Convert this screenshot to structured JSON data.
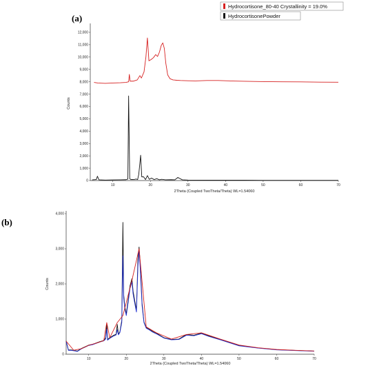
{
  "chart_data": [
    {
      "panel": "(a)",
      "type": "line",
      "xlabel": "2Theta (Coupled TwoTheta/Theta) WL=1.54060",
      "ylabel": "Counts",
      "xlim": [
        4,
        70
      ],
      "ylim": [
        0,
        12500
      ],
      "x_ticks": [
        10,
        20,
        30,
        40,
        50,
        60,
        70
      ],
      "y_ticks": [
        0,
        1000,
        2000,
        3000,
        4000,
        5000,
        6000,
        7000,
        8000,
        9000,
        10000,
        11000,
        12000
      ],
      "y_tick_labels": [
        "0",
        "1,000",
        "2,000",
        "3,000",
        "4,000",
        "5,000",
        "6,000",
        "7,000",
        "8,000",
        "9,000",
        "10,000",
        "11,000",
        "12,000"
      ],
      "legend_position": "top-right",
      "series": [
        {
          "name": "Hydrocortisone_80-40 Crystallinity = 19.0%",
          "color": "#d62020",
          "x": [
            5,
            6,
            8,
            10,
            12,
            13.5,
            14.2,
            14.4,
            14.6,
            15.5,
            16.5,
            17.2,
            17.6,
            18.3,
            18.8,
            19.2,
            19.6,
            20.2,
            20.8,
            21.4,
            21.9,
            22.4,
            22.9,
            23.3,
            23.7,
            24.1,
            24.6,
            25.2,
            26,
            27,
            28,
            30,
            32,
            35,
            38,
            40,
            42,
            45,
            50,
            55,
            60,
            65,
            70
          ],
          "y": [
            7950,
            7900,
            7870,
            7900,
            7920,
            7950,
            8000,
            8600,
            8050,
            8050,
            8150,
            8500,
            8300,
            8800,
            10000,
            11550,
            9700,
            9800,
            9950,
            10200,
            10050,
            10400,
            10950,
            11150,
            10700,
            9500,
            8550,
            8250,
            8150,
            8120,
            8100,
            8080,
            8070,
            8100,
            8100,
            8080,
            8060,
            8040,
            8010,
            8000,
            7990,
            7970,
            7960
          ]
        },
        {
          "name": "HydrocortisonePowder",
          "color": "#111111",
          "x": [
            4.5,
            5.6,
            5.9,
            6.3,
            8,
            10,
            12,
            13.5,
            14,
            14.2,
            14.5,
            14.8,
            15.1,
            15.6,
            16.2,
            16.6,
            16.9,
            17.4,
            17.7,
            18.2,
            18.7,
            19.2,
            19.7,
            20.3,
            21,
            21.7,
            22.4,
            23,
            24,
            25.5,
            26.5,
            27.3,
            28.5,
            30,
            35,
            40,
            45,
            50,
            55,
            60,
            65,
            70
          ],
          "y": [
            60,
            80,
            350,
            60,
            40,
            50,
            60,
            70,
            120,
            6850,
            150,
            80,
            90,
            80,
            120,
            80,
            500,
            2050,
            300,
            300,
            80,
            400,
            100,
            200,
            80,
            150,
            60,
            100,
            60,
            70,
            60,
            250,
            60,
            40,
            30,
            30,
            30,
            20,
            20,
            20,
            20,
            20
          ]
        }
      ]
    },
    {
      "panel": "(b)",
      "type": "line",
      "xlabel": "2Theta (Coupled TwoTheta/Theta) WL=1.54060",
      "ylabel": "Counts",
      "xlim": [
        4,
        70
      ],
      "ylim": [
        0,
        4000
      ],
      "x_ticks": [
        10,
        20,
        30,
        40,
        50,
        60,
        70
      ],
      "y_ticks": [
        0,
        1000,
        2000,
        3000,
        4000
      ],
      "y_tick_labels": [
        "0",
        "1,000",
        "2,000",
        "3,000",
        "4,000"
      ],
      "series": [
        {
          "color": "#111111",
          "x": [
            4,
            4.6,
            5.4,
            6,
            7,
            8,
            9,
            10,
            11,
            12,
            13,
            14,
            14.5,
            14.8,
            15,
            15.6,
            16.5,
            17.3,
            17.6,
            17.9,
            18.3,
            18.8,
            19.1,
            19.3,
            19.6,
            20,
            20.5,
            21,
            21.5,
            21.8,
            22.2,
            22.7,
            23.1,
            23.4,
            23.7,
            24.2,
            24.7,
            25.3,
            26,
            27,
            28,
            30,
            32,
            34,
            36,
            38,
            40,
            42,
            45,
            50,
            55,
            60,
            65,
            70
          ],
          "y": [
            380,
            120,
            120,
            110,
            90,
            160,
            210,
            260,
            280,
            320,
            360,
            390,
            470,
            850,
            420,
            470,
            530,
            570,
            850,
            570,
            640,
            960,
            3750,
            1700,
            1350,
            1150,
            1550,
            1950,
            2150,
            1800,
            1550,
            1250,
            2700,
            3050,
            2600,
            1450,
            920,
            760,
            720,
            650,
            600,
            470,
            420,
            430,
            560,
            540,
            600,
            520,
            420,
            250,
            180,
            130,
            110,
            90
          ]
        },
        {
          "color": "#1f2fd0",
          "x": [
            4,
            4.6,
            5.4,
            6,
            7,
            8,
            9,
            10,
            11,
            12,
            13,
            14,
            14.5,
            14.8,
            15,
            15.6,
            16.5,
            17.3,
            17.6,
            17.9,
            18.3,
            18.8,
            19.1,
            19.3,
            19.6,
            20,
            20.5,
            21,
            21.5,
            21.8,
            22.2,
            22.7,
            23.1,
            23.4,
            23.7,
            24.2,
            24.7,
            25.3,
            26,
            27,
            28,
            30,
            32,
            34,
            36,
            38,
            40,
            42,
            45,
            50,
            55,
            60,
            65,
            70
          ],
          "y": [
            360,
            110,
            110,
            100,
            80,
            150,
            200,
            250,
            270,
            310,
            350,
            380,
            430,
            720,
            400,
            450,
            510,
            550,
            700,
            550,
            620,
            900,
            2800,
            1600,
            1300,
            1100,
            1480,
            1880,
            2050,
            1720,
            1480,
            1200,
            2500,
            2950,
            2450,
            1380,
            900,
            740,
            700,
            630,
            580,
            460,
            410,
            420,
            540,
            525,
            585,
            505,
            410,
            240,
            175,
            125,
            105,
            85
          ]
        },
        {
          "color": "#d62020",
          "x": [
            4,
            6,
            8,
            10,
            12,
            14,
            14.8,
            15.6,
            17.6,
            19.1,
            21.5,
            23.4,
            25.3,
            28,
            32,
            36,
            40,
            45,
            50,
            55,
            60,
            65,
            70
          ],
          "y": [
            370,
            115,
            155,
            255,
            315,
            385,
            900,
            470,
            900,
            1100,
            2100,
            3000,
            780,
            610,
            430,
            560,
            610,
            430,
            260,
            185,
            135,
            112,
            92
          ]
        }
      ]
    }
  ]
}
